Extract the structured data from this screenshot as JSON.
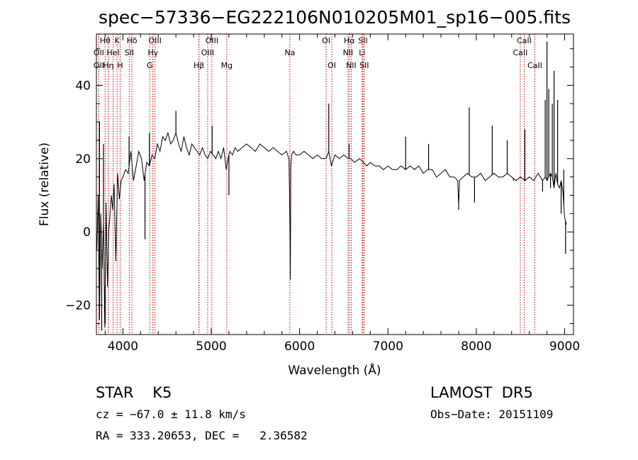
{
  "chart_data": {
    "type": "line",
    "title": "spec−57336−EG222106N010205M01_sp16−005.fits",
    "xlabel": "Wavelength (Å)",
    "ylabel": "Flux (relative)",
    "xlim": [
      3700,
      9100
    ],
    "ylim": [
      -28,
      54
    ],
    "x_ticks": [
      4000,
      5000,
      6000,
      7000,
      8000,
      9000
    ],
    "y_ticks": [
      -20,
      0,
      20,
      40
    ],
    "x_tick_labels": [
      "4000",
      "5000",
      "6000",
      "7000",
      "8000",
      "9000"
    ],
    "y_tick_labels": [
      "−20",
      "0",
      "20",
      "40"
    ],
    "line_color": "#000000",
    "marker_color": "#cc0000",
    "spectrum": {
      "x": [
        3705,
        3720,
        3735,
        3750,
        3765,
        3780,
        3795,
        3810,
        3825,
        3840,
        3855,
        3870,
        3885,
        3900,
        3920,
        3940,
        3960,
        3980,
        4000,
        4030,
        4060,
        4090,
        4120,
        4150,
        4180,
        4210,
        4240,
        4270,
        4300,
        4330,
        4360,
        4390,
        4420,
        4450,
        4480,
        4510,
        4540,
        4570,
        4600,
        4630,
        4660,
        4690,
        4720,
        4750,
        4780,
        4810,
        4840,
        4870,
        4900,
        4930,
        4960,
        4990,
        5020,
        5050,
        5080,
        5110,
        5140,
        5170,
        5190,
        5210,
        5240,
        5270,
        5300,
        5350,
        5400,
        5450,
        5500,
        5550,
        5600,
        5650,
        5700,
        5750,
        5800,
        5850,
        5880,
        5890,
        5895,
        5900,
        5910,
        5930,
        5960,
        6000,
        6050,
        6100,
        6150,
        6200,
        6250,
        6300,
        6330,
        6360,
        6400,
        6450,
        6500,
        6550,
        6580,
        6620,
        6680,
        6720,
        6760,
        6800,
        6850,
        6900,
        6950,
        7000,
        7050,
        7100,
        7150,
        7200,
        7250,
        7300,
        7350,
        7400,
        7450,
        7500,
        7550,
        7600,
        7650,
        7700,
        7750,
        7790,
        7800,
        7810,
        7850,
        7900,
        7950,
        8000,
        8050,
        8100,
        8150,
        8200,
        8250,
        8300,
        8350,
        8400,
        8450,
        8500,
        8550,
        8600,
        8650,
        8700,
        8750,
        8780,
        8800,
        8820,
        8840,
        8860,
        8880,
        8900,
        8920,
        8940,
        8960,
        8980,
        9000,
        9020
      ],
      "y": [
        -5,
        10,
        -24,
        5,
        -10,
        3,
        -26,
        8,
        -15,
        0,
        5,
        10,
        6,
        13,
        -8,
        16,
        9,
        14,
        15,
        17,
        16,
        22,
        14,
        18,
        22,
        20,
        14,
        19,
        18,
        21,
        20,
        24,
        22,
        26,
        25,
        27,
        24,
        25,
        27,
        24,
        22,
        26,
        23,
        21,
        24,
        23,
        22,
        21,
        23,
        21,
        20,
        22,
        21,
        20,
        22,
        20,
        23,
        17,
        20,
        22,
        21,
        23,
        22,
        23,
        24,
        23,
        22,
        24,
        23,
        22,
        23,
        22,
        21,
        22,
        20,
        3,
        -13,
        18,
        21,
        22,
        21,
        21,
        22,
        21,
        20,
        21,
        20,
        20,
        22,
        18,
        21,
        20,
        21,
        20,
        20,
        19,
        20,
        19,
        18,
        19,
        18,
        18,
        17,
        18,
        17,
        17,
        18,
        17,
        18,
        17,
        18,
        16,
        17,
        17,
        15,
        16,
        17,
        15,
        15,
        14,
        7,
        14,
        15,
        16,
        15,
        15,
        16,
        14,
        15,
        16,
        15,
        15,
        16,
        15,
        14,
        15,
        14,
        15,
        14,
        16,
        14,
        15,
        14,
        15,
        16,
        15,
        12,
        16,
        13,
        12,
        14,
        11,
        4,
        2
      ]
    },
    "spikes": [
      {
        "x": 3735,
        "y": 30
      },
      {
        "x": 3760,
        "y": -27
      },
      {
        "x": 3780,
        "y": 24
      },
      {
        "x": 3800,
        "y": -25
      },
      {
        "x": 4070,
        "y": 26
      },
      {
        "x": 4250,
        "y": -2
      },
      {
        "x": 4300,
        "y": 27
      },
      {
        "x": 4600,
        "y": 33
      },
      {
        "x": 5010,
        "y": 29
      },
      {
        "x": 5200,
        "y": 10
      },
      {
        "x": 6330,
        "y": 35
      },
      {
        "x": 6560,
        "y": 24
      },
      {
        "x": 7200,
        "y": 26
      },
      {
        "x": 7460,
        "y": 24
      },
      {
        "x": 7800,
        "y": 6
      },
      {
        "x": 7920,
        "y": 34
      },
      {
        "x": 7980,
        "y": 8
      },
      {
        "x": 8180,
        "y": 29
      },
      {
        "x": 8350,
        "y": 25
      },
      {
        "x": 8420,
        "y": 14
      },
      {
        "x": 8550,
        "y": 28
      },
      {
        "x": 8750,
        "y": 11
      },
      {
        "x": 8780,
        "y": 36
      },
      {
        "x": 8800,
        "y": 52
      },
      {
        "x": 8820,
        "y": 39
      },
      {
        "x": 8840,
        "y": 12
      },
      {
        "x": 8860,
        "y": 35
      },
      {
        "x": 8880,
        "y": 44
      },
      {
        "x": 8900,
        "y": 15
      },
      {
        "x": 8920,
        "y": 36
      },
      {
        "x": 8960,
        "y": 5
      },
      {
        "x": 8990,
        "y": 17
      },
      {
        "x": 9010,
        "y": -6
      }
    ],
    "line_markers": [
      {
        "wavelength": 3798,
        "label": "Hθ",
        "row": 0
      },
      {
        "wavelength": 3835,
        "label": "",
        "row": 0
      },
      {
        "wavelength": 3889,
        "label": "",
        "row": 0
      },
      {
        "wavelength": 3934,
        "label": "K",
        "row": 0
      },
      {
        "wavelength": 3969,
        "label": "",
        "row": 0
      },
      {
        "wavelength": 4102,
        "label": "Hδ",
        "row": 0
      },
      {
        "wavelength": 4340,
        "label": "",
        "row": 0
      },
      {
        "wavelength": 4363,
        "label": "OIII",
        "row": 0
      },
      {
        "wavelength": 4861,
        "label": "",
        "row": 0
      },
      {
        "wavelength": 5007,
        "label": "OIII",
        "row": 0
      },
      {
        "wavelength": 6300,
        "label": "OI",
        "row": 0
      },
      {
        "wavelength": 6563,
        "label": "Hα",
        "row": 0
      },
      {
        "wavelength": 6717,
        "label": "SII",
        "row": 0
      },
      {
        "wavelength": 8542,
        "label": "CaII",
        "row": 0
      },
      {
        "wavelength": 3727,
        "label": "OII",
        "row": 1
      },
      {
        "wavelength": 3889,
        "label": "HeI",
        "row": 1
      },
      {
        "wavelength": 4072,
        "label": "SII",
        "row": 1
      },
      {
        "wavelength": 4340,
        "label": "Hγ",
        "row": 1
      },
      {
        "wavelength": 4959,
        "label": "OIII",
        "row": 1
      },
      {
        "wavelength": 5890,
        "label": "Na",
        "row": 1
      },
      {
        "wavelength": 6548,
        "label": "NII",
        "row": 1
      },
      {
        "wavelength": 6708,
        "label": "Li",
        "row": 1
      },
      {
        "wavelength": 8498,
        "label": "CaII",
        "row": 1
      },
      {
        "wavelength": 3727,
        "label": "OII",
        "row": 2
      },
      {
        "wavelength": 3835,
        "label": "Hη",
        "row": 2
      },
      {
        "wavelength": 3969,
        "label": "H",
        "row": 2
      },
      {
        "wavelength": 4304,
        "label": "G",
        "row": 2
      },
      {
        "wavelength": 4861,
        "label": "Hβ",
        "row": 2
      },
      {
        "wavelength": 5175,
        "label": "Mg",
        "row": 2
      },
      {
        "wavelength": 6364,
        "label": "OI",
        "row": 2
      },
      {
        "wavelength": 6584,
        "label": "NII",
        "row": 2
      },
      {
        "wavelength": 6731,
        "label": "SII",
        "row": 2
      },
      {
        "wavelength": 8662,
        "label": "CaII",
        "row": 2
      }
    ]
  },
  "info": {
    "object_class": "STAR    K5",
    "survey": "LAMOST  DR5",
    "redshift": "cz = −67.0 ± 11.8 km/s",
    "obs_date": "Obs−Date: 20151109",
    "coords": "RA = 333.20653, DEC =   2.36582"
  }
}
